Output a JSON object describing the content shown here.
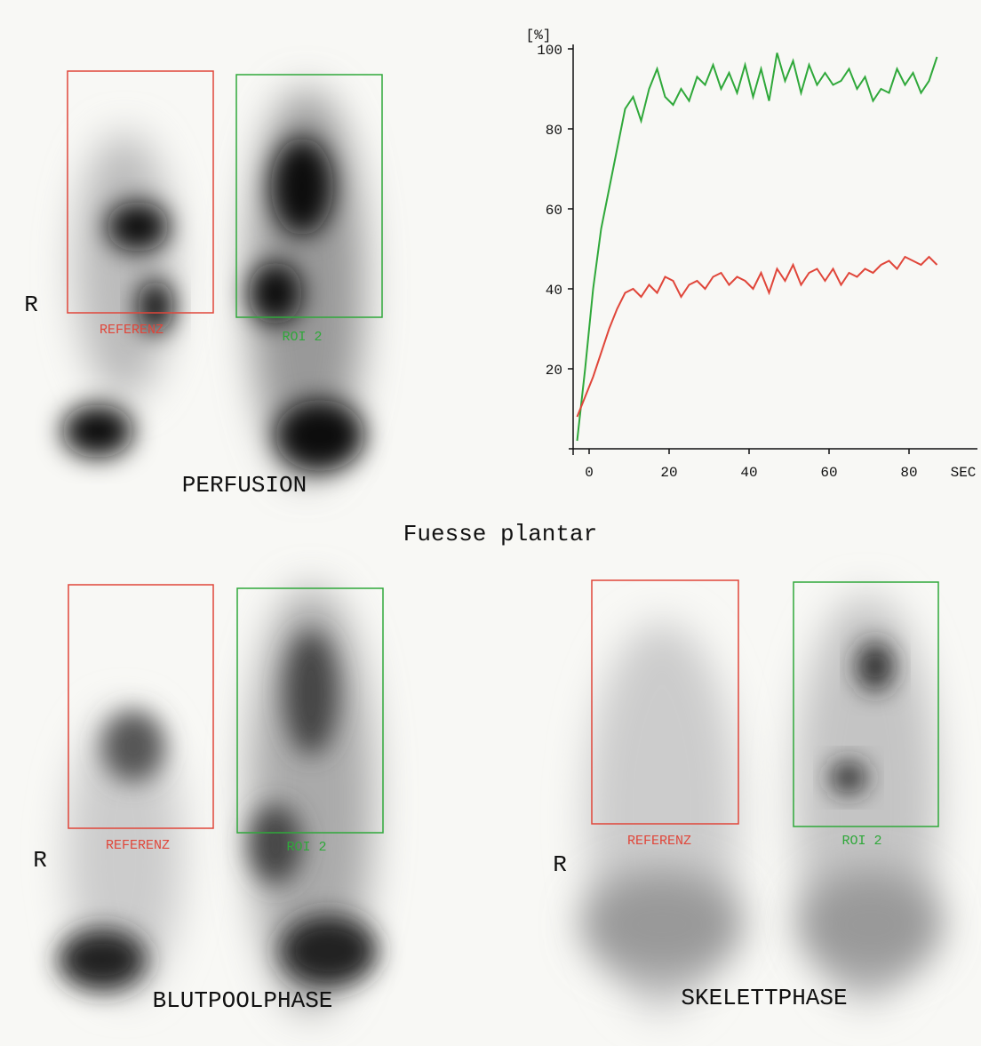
{
  "title": "Fuesse plantar",
  "panels": [
    {
      "side": "R",
      "reference": "REFERENZ",
      "roi": "ROI 2",
      "phase": "PERFUSION"
    },
    {
      "side": "R",
      "reference": "REFERENZ",
      "roi": "ROI 2",
      "phase": "BLUTPOOLPHASE"
    },
    {
      "side": "R",
      "reference": "REFERENZ",
      "roi": "ROI 2",
      "phase": "SKELETTPHASE"
    }
  ],
  "chart_data": {
    "type": "line",
    "ylabel": "[%]",
    "xlabel": "SEC",
    "x": [
      -3,
      -1,
      1,
      3,
      5,
      7,
      9,
      11,
      13,
      15,
      17,
      19,
      21,
      23,
      25,
      27,
      29,
      31,
      33,
      35,
      37,
      39,
      41,
      43,
      45,
      47,
      49,
      51,
      53,
      55,
      57,
      59,
      61,
      63,
      65,
      67,
      69,
      71,
      73,
      75,
      77,
      79,
      81,
      83,
      85,
      87
    ],
    "series": [
      {
        "color": "#2fa83a",
        "values": [
          2,
          20,
          40,
          55,
          65,
          75,
          85,
          88,
          82,
          90,
          95,
          88,
          86,
          90,
          87,
          93,
          91,
          96,
          90,
          94,
          89,
          96,
          88,
          95,
          87,
          99,
          92,
          97,
          89,
          96,
          91,
          94,
          91,
          92,
          95,
          90,
          93,
          87,
          90,
          89,
          95,
          91,
          94,
          89,
          92,
          98
        ]
      },
      {
        "color": "#e0463a",
        "values": [
          8,
          13,
          18,
          24,
          30,
          35,
          39,
          40,
          38,
          41,
          39,
          43,
          42,
          38,
          41,
          42,
          40,
          43,
          44,
          41,
          43,
          42,
          40,
          44,
          39,
          45,
          42,
          46,
          41,
          44,
          45,
          42,
          45,
          41,
          44,
          43,
          45,
          44,
          46,
          47,
          45,
          48,
          47,
          46,
          48,
          46
        ]
      }
    ],
    "xlim": [
      -4,
      92
    ],
    "ylim": [
      0,
      100
    ],
    "xticks": [
      0,
      20,
      40,
      60,
      80
    ],
    "yticks": [
      20,
      40,
      60,
      80,
      100
    ]
  }
}
